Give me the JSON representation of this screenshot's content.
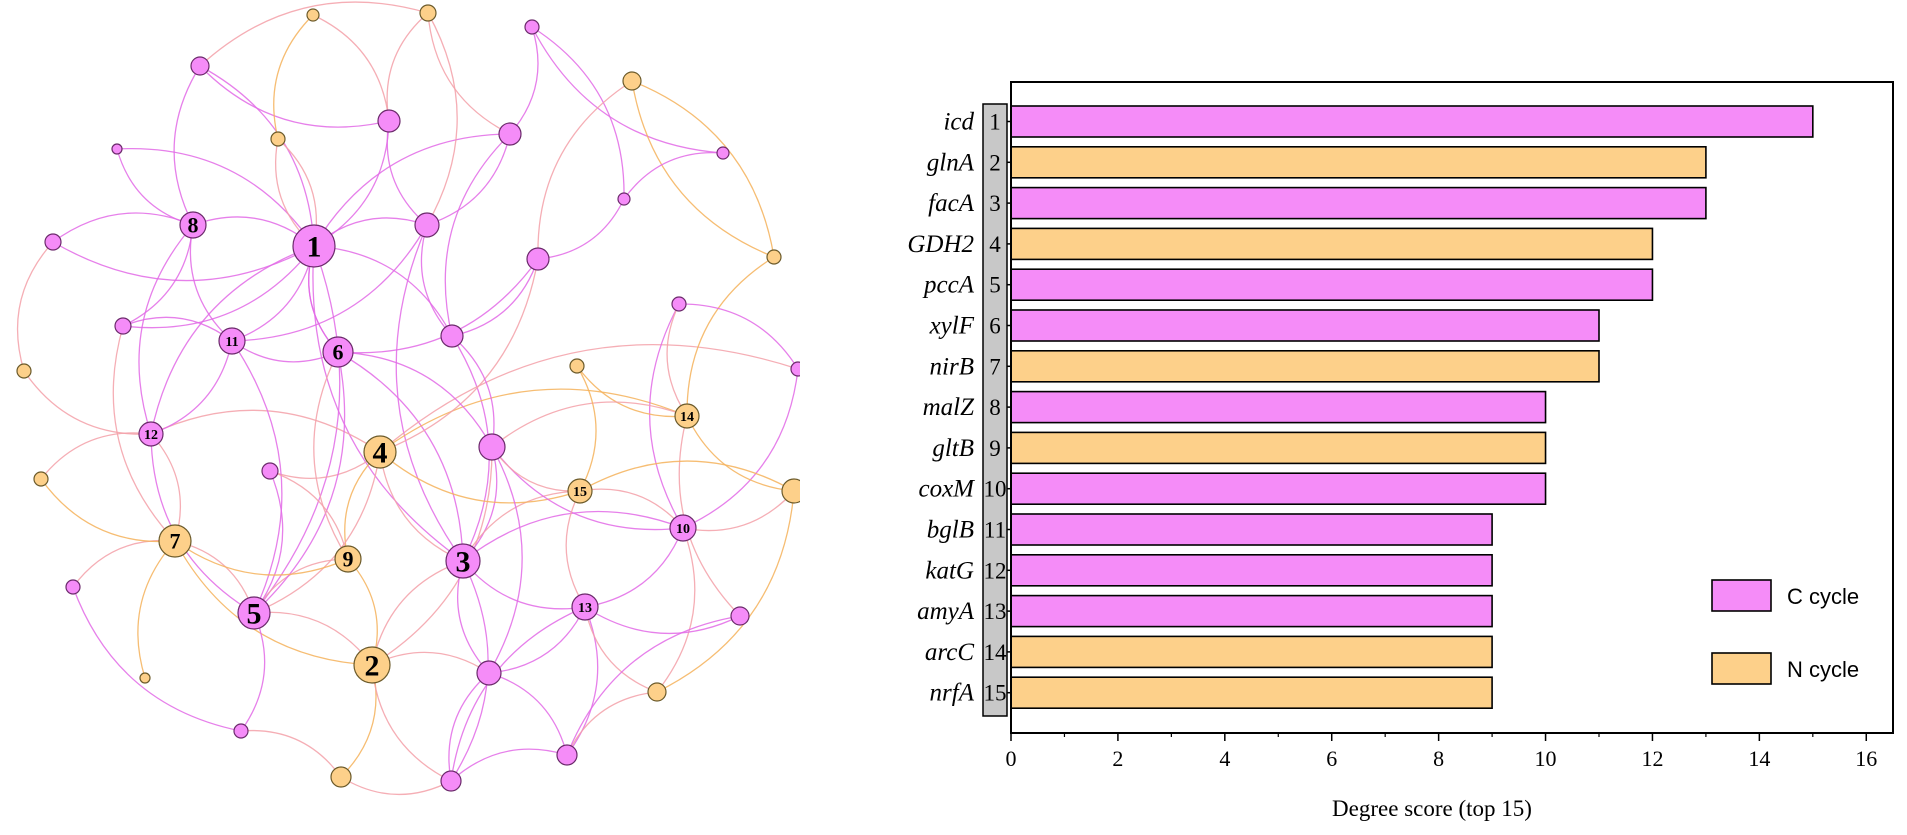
{
  "colors": {
    "c_cycle": "#f58cf8",
    "c_cycle_stroke": "#6b2a6b",
    "n_cycle": "#fdd08a",
    "n_cycle_stroke": "#6b5a2a",
    "c_edge": "#e26ae6",
    "n_edge": "#f4b15a",
    "mixed_edge": "#f3a0a8",
    "rank_box": "#c8c8c8"
  },
  "network": {
    "labels": [
      "1",
      "2",
      "3",
      "4",
      "5",
      "6",
      "7",
      "8",
      "9",
      "10",
      "11",
      "12",
      "13",
      "14",
      "15"
    ]
  },
  "chart_data": {
    "type": "bar",
    "orientation": "horizontal",
    "categories": [
      "icd",
      "glnA",
      "facA",
      "GDH2",
      "pccA",
      "xylF",
      "nirB",
      "malZ",
      "gltB",
      "coxM",
      "bglB",
      "katG",
      "amyA",
      "arcC",
      "nrfA"
    ],
    "ranks": [
      "1",
      "2",
      "3",
      "4",
      "5",
      "6",
      "7",
      "8",
      "9",
      "10",
      "11",
      "12",
      "13",
      "14",
      "15"
    ],
    "values": [
      15,
      13,
      13,
      12,
      12,
      11,
      11,
      10,
      10,
      10,
      9,
      9,
      9,
      9,
      9
    ],
    "cycle": [
      "C",
      "N",
      "C",
      "N",
      "C",
      "C",
      "N",
      "C",
      "N",
      "C",
      "C",
      "C",
      "C",
      "N",
      "N"
    ],
    "xlabel": "Degree score (top 15)",
    "xlim": [
      0,
      16.5
    ],
    "xticks": [
      0,
      2,
      4,
      6,
      8,
      10,
      12,
      14,
      16
    ],
    "legend": {
      "position": "bottom-right",
      "entries": [
        {
          "key": "C",
          "label": "C cycle"
        },
        {
          "key": "N",
          "label": "N cycle"
        }
      ]
    }
  }
}
